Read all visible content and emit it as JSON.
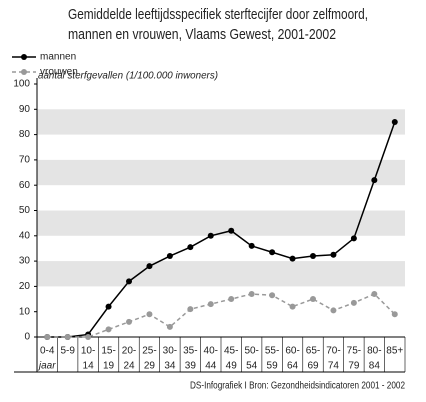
{
  "chart_data": {
    "type": "line",
    "title": [
      "Gemiddelde leeftijdsspecifiek sterftecijfer door zelfmoord,",
      "mannen en vrouwen, Vlaams Gewest, 2001-2002"
    ],
    "y_label": "aantal sterfgevallen (1/100.000 inwoners)",
    "source": "DS-Infografiek I Bron: Gezondheidsindicatoren 2001 - 2002",
    "categories": [
      [
        "0-4",
        "jaar"
      ],
      [
        "5-9"
      ],
      [
        "10-",
        "14"
      ],
      [
        "15-",
        "19"
      ],
      [
        "20-",
        "24"
      ],
      [
        "25-",
        "29"
      ],
      [
        "30-",
        "34"
      ],
      [
        "35-",
        "39"
      ],
      [
        "40-",
        "44"
      ],
      [
        "45-",
        "49"
      ],
      [
        "50-",
        "54"
      ],
      [
        "55-",
        "59"
      ],
      [
        "60-",
        "64"
      ],
      [
        "65-",
        "69"
      ],
      [
        "70-",
        "74"
      ],
      [
        "75-",
        "79"
      ],
      [
        "80-",
        "84"
      ],
      [
        "85+"
      ]
    ],
    "series": [
      {
        "name": "mannen",
        "color": "#000000",
        "dashed": false,
        "values": [
          0,
          0,
          1,
          12,
          22,
          28,
          32,
          35.5,
          40,
          42,
          36,
          33.5,
          31,
          32,
          32.5,
          39,
          62,
          85
        ]
      },
      {
        "name": "vrouwen",
        "color": "#999999",
        "dashed": true,
        "values": [
          0,
          0,
          0,
          3,
          6,
          9,
          4,
          11,
          13,
          15,
          17,
          16.5,
          12,
          15,
          10.5,
          13.5,
          17,
          9
        ]
      }
    ],
    "ylim": [
      0,
      100
    ],
    "yticks": [
      0,
      10,
      20,
      30,
      40,
      50,
      60,
      70,
      80,
      90,
      100
    ],
    "bands": true
  }
}
